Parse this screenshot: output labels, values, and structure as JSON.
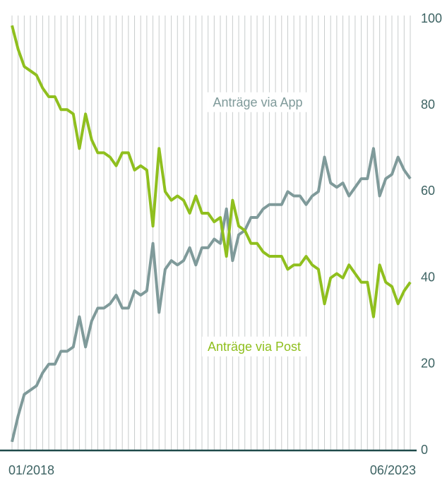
{
  "chart_data": {
    "type": "line",
    "categories": [
      "01/2018",
      null,
      null,
      null,
      null,
      null,
      null,
      null,
      null,
      null,
      null,
      null,
      null,
      null,
      null,
      null,
      null,
      null,
      null,
      null,
      null,
      null,
      null,
      null,
      null,
      null,
      null,
      null,
      null,
      null,
      null,
      null,
      null,
      null,
      null,
      null,
      null,
      null,
      null,
      null,
      null,
      null,
      null,
      null,
      null,
      null,
      null,
      null,
      null,
      null,
      null,
      null,
      null,
      null,
      null,
      null,
      null,
      null,
      null,
      null,
      null,
      null,
      null,
      null,
      null,
      "06/2023"
    ],
    "series": [
      {
        "name": "Anträge via App",
        "color": "#7f9a9a",
        "values": [
          2,
          8,
          13,
          14,
          15,
          18,
          20,
          20,
          23,
          23,
          24,
          31,
          24,
          30,
          33,
          33,
          34,
          36,
          33,
          33,
          37,
          36,
          37,
          48,
          32,
          42,
          44,
          43,
          44,
          47,
          43,
          47,
          47,
          49,
          48,
          56,
          44,
          50,
          51,
          54,
          54,
          56,
          57,
          57,
          57,
          60,
          59,
          59,
          57,
          59,
          60,
          68,
          62,
          61,
          62,
          59,
          61,
          63,
          63,
          70,
          59,
          63,
          64,
          68,
          65,
          63
        ]
      },
      {
        "name": "Anträge via Post",
        "color": "#8fbf1e",
        "values": [
          98.5,
          93,
          89,
          88,
          87,
          84,
          82,
          82,
          79,
          79,
          78,
          70,
          78,
          72,
          69,
          69,
          68,
          66,
          69,
          69,
          65,
          66,
          65,
          52,
          70,
          60,
          58,
          59,
          58,
          55,
          59,
          55,
          55,
          53,
          54,
          45,
          58,
          52,
          51,
          48,
          48,
          46,
          45,
          45,
          45,
          42,
          43,
          43,
          45,
          43,
          42,
          34,
          40,
          41,
          40,
          43,
          41,
          39,
          39,
          31,
          43,
          39,
          38,
          34,
          37,
          39
        ]
      }
    ],
    "ylim": [
      0,
      100
    ],
    "yticks": [
      0,
      20,
      40,
      60,
      80,
      100
    ],
    "grid": true
  }
}
